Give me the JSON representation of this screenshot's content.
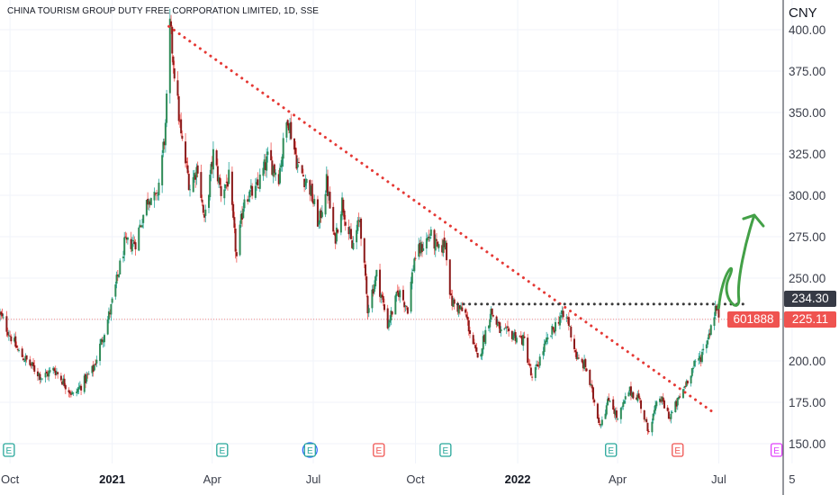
{
  "header": {
    "title": "CHINA TOURISM GROUP DUTY FREE CORPORATION LIMITED",
    "interval": "1D",
    "exchange": "SSE",
    "currency": "CNY"
  },
  "colors": {
    "up": "#26a69a",
    "down": "#ef5350",
    "up_body": "#2e8b57",
    "down_body": "#8b1a1a",
    "trendline": "#e53935",
    "resistance": "#3a3a3a",
    "arrow": "#43a047",
    "price_badge": "#ef5350",
    "level_badge": "#363a45"
  },
  "chart_data": {
    "type": "candlestick",
    "x_ticks": [
      {
        "label": "Oct",
        "date": "2020-10-01",
        "bold": false
      },
      {
        "label": "2021",
        "date": "2021-01-01",
        "bold": true
      },
      {
        "label": "Apr",
        "date": "2021-04-01",
        "bold": false
      },
      {
        "label": "Jul",
        "date": "2021-07-01",
        "bold": false
      },
      {
        "label": "Oct",
        "date": "2021-10-01",
        "bold": false
      },
      {
        "label": "2022",
        "date": "2022-01-01",
        "bold": true
      },
      {
        "label": "Apr",
        "date": "2022-04-01",
        "bold": false
      },
      {
        "label": "Jul",
        "date": "2022-07-01",
        "bold": false
      },
      {
        "label": "5",
        "date": "2022-09-05",
        "bold": false
      }
    ],
    "y_ticks": [
      "400.00",
      "375.00",
      "350.00",
      "325.00",
      "300.00",
      "275.00",
      "250.00",
      "225.00",
      "200.00",
      "175.00",
      "150.00"
    ],
    "ylim": [
      145,
      410
    ],
    "xlim": [
      "2020-09-22",
      "2022-08-28"
    ],
    "price_path": [
      [
        "2020-09-22",
        228
      ],
      [
        "2020-10-09",
        205
      ],
      [
        "2020-10-30",
        190
      ],
      [
        "2020-11-10",
        195
      ],
      [
        "2020-11-27",
        179
      ],
      [
        "2020-12-15",
        195
      ],
      [
        "2020-12-31",
        232
      ],
      [
        "2021-01-12",
        270
      ],
      [
        "2021-01-22",
        272
      ],
      [
        "2021-02-03",
        300
      ],
      [
        "2021-02-10",
        297
      ],
      [
        "2021-02-18",
        340
      ],
      [
        "2021-02-22",
        402
      ],
      [
        "2021-02-26",
        375
      ],
      [
        "2021-03-04",
        335
      ],
      [
        "2021-03-12",
        305
      ],
      [
        "2021-03-19",
        318
      ],
      [
        "2021-03-25",
        283
      ],
      [
        "2021-04-02",
        325
      ],
      [
        "2021-04-09",
        302
      ],
      [
        "2021-04-16",
        310
      ],
      [
        "2021-04-23",
        262
      ],
      [
        "2021-04-30",
        300
      ],
      [
        "2021-05-10",
        302
      ],
      [
        "2021-05-21",
        322
      ],
      [
        "2021-05-31",
        312
      ],
      [
        "2021-06-08",
        348
      ],
      [
        "2021-06-17",
        318
      ],
      [
        "2021-06-28",
        304
      ],
      [
        "2021-07-06",
        282
      ],
      [
        "2021-07-13",
        308
      ],
      [
        "2021-07-20",
        272
      ],
      [
        "2021-07-27",
        296
      ],
      [
        "2021-08-05",
        268
      ],
      [
        "2021-08-12",
        286
      ],
      [
        "2021-08-19",
        232
      ],
      [
        "2021-08-27",
        252
      ],
      [
        "2021-09-06",
        222
      ],
      [
        "2021-09-16",
        242
      ],
      [
        "2021-09-24",
        232
      ],
      [
        "2021-09-30",
        262
      ],
      [
        "2021-10-14",
        276
      ],
      [
        "2021-10-22",
        266
      ],
      [
        "2021-10-28",
        272
      ],
      [
        "2021-11-02",
        236
      ],
      [
        "2021-11-15",
        228
      ],
      [
        "2021-11-26",
        200
      ],
      [
        "2021-12-08",
        230
      ],
      [
        "2021-12-17",
        217
      ],
      [
        "2021-12-28",
        216
      ],
      [
        "2022-01-07",
        212
      ],
      [
        "2022-01-14",
        188
      ],
      [
        "2022-01-24",
        207
      ],
      [
        "2022-02-08",
        227
      ],
      [
        "2022-02-15",
        225
      ],
      [
        "2022-02-24",
        200
      ],
      [
        "2022-03-03",
        197
      ],
      [
        "2022-03-10",
        178
      ],
      [
        "2022-03-16",
        162
      ],
      [
        "2022-03-25",
        178
      ],
      [
        "2022-04-01",
        164
      ],
      [
        "2022-04-11",
        182
      ],
      [
        "2022-04-20",
        178
      ],
      [
        "2022-04-28",
        158
      ],
      [
        "2022-05-09",
        178
      ],
      [
        "2022-05-18",
        166
      ],
      [
        "2022-05-27",
        178
      ],
      [
        "2022-06-06",
        194
      ],
      [
        "2022-06-15",
        203
      ],
      [
        "2022-06-22",
        216
      ],
      [
        "2022-06-28",
        232
      ],
      [
        "2022-07-01",
        228
      ]
    ],
    "earnings_markers": [
      {
        "date": "2020-09-30",
        "letter": "E",
        "kind": "up"
      },
      {
        "date": "2021-04-10",
        "letter": "E",
        "kind": "up"
      },
      {
        "date": "2021-06-28",
        "letter": "E",
        "kind": "multi"
      },
      {
        "date": "2021-08-29",
        "letter": "E",
        "kind": "down"
      },
      {
        "date": "2021-10-28",
        "letter": "E",
        "kind": "up"
      },
      {
        "date": "2022-03-26",
        "letter": "E",
        "kind": "up"
      },
      {
        "date": "2022-05-25",
        "letter": "E",
        "kind": "down"
      },
      {
        "date": "2022-08-22",
        "letter": "E",
        "kind": "future"
      }
    ],
    "trendline": {
      "from": [
        "2021-02-21",
        402
      ],
      "to": [
        "2022-06-28",
        168
      ]
    },
    "resistance": {
      "from": [
        "2021-11-08",
        234.3
      ],
      "to": [
        "2022-07-26",
        234.3
      ]
    },
    "current_price_line": 225.11,
    "projection_arrow": [
      [
        "2022-07-01",
        232
      ],
      [
        "2022-07-10",
        250
      ],
      [
        "2022-07-19",
        238
      ],
      [
        "2022-08-02",
        288
      ]
    ],
    "price_labels": {
      "level": "234.30",
      "symbol": "601888",
      "last": "225.11"
    }
  }
}
